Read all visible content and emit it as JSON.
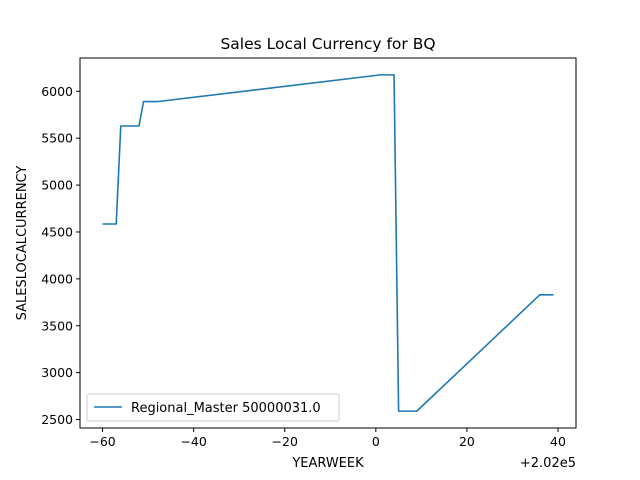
{
  "chart_data": {
    "type": "line",
    "title": "Sales Local Currency for BQ",
    "xlabel": "YEARWEEK",
    "ylabel": "SALESLOCALCURRENCY",
    "x_offset_label": "+2.02e5",
    "xlim": [
      -64.95,
      43.95
    ],
    "ylim": [
      2410,
      6355
    ],
    "xticks": [
      -60,
      -40,
      -20,
      0,
      20,
      40
    ],
    "xtick_labels": [
      "−60",
      "−40",
      "−20",
      "0",
      "20",
      "40"
    ],
    "yticks": [
      2500,
      3000,
      3500,
      4000,
      4500,
      5000,
      5500,
      6000
    ],
    "ytick_labels": [
      "2500",
      "3000",
      "3500",
      "4000",
      "4500",
      "5000",
      "5500",
      "6000"
    ],
    "grid": false,
    "legend_position": "lower-left",
    "series": [
      {
        "name": "Regional_Master 50000031.0",
        "color": "#1f77b4",
        "x": [
          -60,
          -57,
          -56,
          -52,
          -51,
          -48,
          1,
          4,
          5,
          9,
          36,
          39
        ],
        "y": [
          4585,
          4585,
          5630,
          5630,
          5890,
          5890,
          6175,
          6175,
          2590,
          2590,
          3830,
          3830
        ]
      }
    ]
  }
}
